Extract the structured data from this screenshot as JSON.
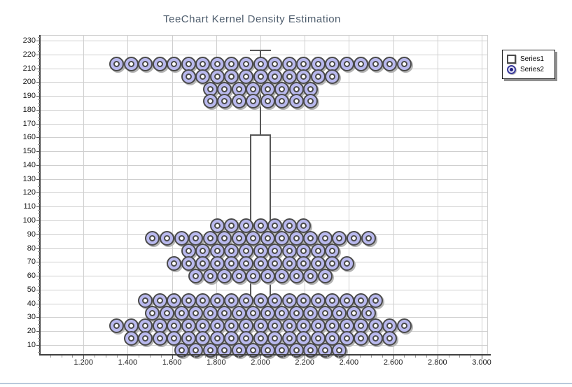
{
  "title": "TeeChart Kernel Density Estimation",
  "legend": {
    "items": [
      {
        "label": "Series1",
        "symbol": "square"
      },
      {
        "label": "Series2",
        "symbol": "ring"
      }
    ]
  },
  "axes": {
    "x": {
      "ticks": [
        {
          "value": 1.2,
          "label": "1.200"
        },
        {
          "value": 1.4,
          "label": "1.400"
        },
        {
          "value": 1.6,
          "label": "1.600"
        },
        {
          "value": 1.8,
          "label": "1.800"
        },
        {
          "value": 2.0,
          "label": "2.000"
        },
        {
          "value": 2.2,
          "label": "2.200"
        },
        {
          "value": 2.4,
          "label": "2.400"
        },
        {
          "value": 2.6,
          "label": "2.600"
        },
        {
          "value": 2.8,
          "label": "2.800"
        },
        {
          "value": 3.0,
          "label": "3.000"
        }
      ],
      "minor_step": 0.05
    },
    "y": {
      "ticks": [
        {
          "value": 230,
          "label": "230"
        },
        {
          "value": 220,
          "label": "220"
        },
        {
          "value": 210,
          "label": "210"
        },
        {
          "value": 200,
          "label": "200"
        },
        {
          "value": 190,
          "label": "190"
        },
        {
          "value": 180,
          "label": "180"
        },
        {
          "value": 170,
          "label": "170"
        },
        {
          "value": 160,
          "label": "160"
        },
        {
          "value": 150,
          "label": "150"
        },
        {
          "value": 140,
          "label": "140"
        },
        {
          "value": 130,
          "label": "130"
        },
        {
          "value": 120,
          "label": "120"
        },
        {
          "value": 110,
          "label": "110"
        },
        {
          "value": 100,
          "label": "100"
        },
        {
          "value": 90,
          "label": "90"
        },
        {
          "value": 80,
          "label": "80"
        },
        {
          "value": 70,
          "label": "70"
        },
        {
          "value": 60,
          "label": "60"
        },
        {
          "value": 50,
          "label": "50"
        },
        {
          "value": 40,
          "label": "40"
        },
        {
          "value": 30,
          "label": "30"
        },
        {
          "value": 20,
          "label": "20"
        },
        {
          "value": 10,
          "label": "10"
        }
      ],
      "minor_step": 2.5
    }
  },
  "chart_data": {
    "type": "scatter",
    "title": "TeeChart Kernel Density Estimation",
    "xlim": [
      1.0,
      3.03
    ],
    "ylim": [
      3,
      234
    ],
    "grid": true,
    "legend_position": "top-right",
    "series": [
      {
        "name": "Series1",
        "kind": "boxplot",
        "x_center": 2.0,
        "box_half_width": 0.047,
        "min": 6,
        "q1": 27,
        "median": 64,
        "q3": 162,
        "max": 223
      },
      {
        "name": "Series2",
        "kind": "dot-rows",
        "marker": "ring",
        "x_center": 2.0,
        "x_step": 0.065,
        "rows": [
          {
            "y": 213,
            "count": 21,
            "x_min": 1.35,
            "x_max": 2.65
          },
          {
            "y": 204,
            "count": 11,
            "x_min": 1.675,
            "x_max": 2.325
          },
          {
            "y": 195,
            "count": 8,
            "x_min": 1.773,
            "x_max": 2.228
          },
          {
            "y": 186,
            "count": 8,
            "x_min": 1.773,
            "x_max": 2.228
          },
          {
            "y": 96,
            "count": 7,
            "x_min": 1.805,
            "x_max": 2.195
          },
          {
            "y": 87,
            "count": 16,
            "x_min": 1.513,
            "x_max": 2.488
          },
          {
            "y": 78,
            "count": 11,
            "x_min": 1.675,
            "x_max": 2.325
          },
          {
            "y": 69,
            "count": 13,
            "x_min": 1.61,
            "x_max": 2.39
          },
          {
            "y": 60,
            "count": 10,
            "x_min": 1.708,
            "x_max": 2.293
          },
          {
            "y": 42,
            "count": 17,
            "x_min": 1.48,
            "x_max": 2.52
          },
          {
            "y": 33,
            "count": 16,
            "x_min": 1.513,
            "x_max": 2.488
          },
          {
            "y": 24,
            "count": 21,
            "x_min": 1.35,
            "x_max": 2.65
          },
          {
            "y": 15,
            "count": 19,
            "x_min": 1.415,
            "x_max": 2.585
          },
          {
            "y": 6,
            "count": 12,
            "x_min": 1.643,
            "x_max": 2.358
          }
        ]
      }
    ]
  },
  "colors": {
    "background": "#ffffff",
    "grid": "#cfcfcf",
    "axis": "#3f3f3f",
    "title": "#4d5c6c",
    "point_fill": "#b9b9ee",
    "point_border": "#4a4a4a",
    "box_border": "#575757",
    "legend_ring": "#3c3c9c",
    "window_edge": "#b9c9db"
  }
}
